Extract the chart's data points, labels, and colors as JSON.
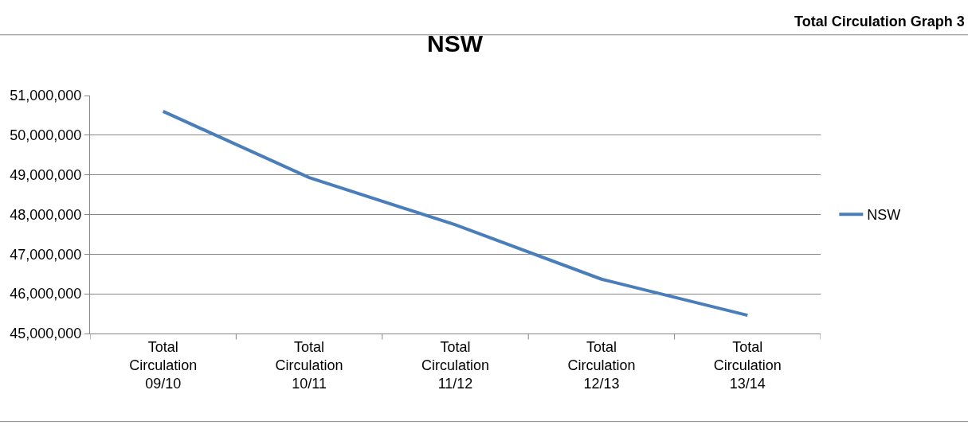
{
  "chart_data": {
    "type": "line",
    "title": "NSW",
    "annotations": [
      "Total Circulation Graph 3"
    ],
    "categories": [
      "Total Circulation 09/10",
      "Total Circulation 10/11",
      "Total Circulation 11/12",
      "Total Circulation 12/13",
      "Total Circulation 13/14"
    ],
    "series": [
      {
        "name": "NSW",
        "color": "#4a7ebb",
        "values": [
          50600000,
          48930000,
          47740000,
          46370000,
          45460000
        ]
      }
    ],
    "ylim": [
      45000000,
      51000000
    ],
    "yticks": [
      {
        "value": 45000000,
        "label": "45,000,000"
      },
      {
        "value": 46000000,
        "label": "46,000,000"
      },
      {
        "value": 47000000,
        "label": "47,000,000"
      },
      {
        "value": 48000000,
        "label": "48,000,000"
      },
      {
        "value": 49000000,
        "label": "49,000,000"
      },
      {
        "value": 50000000,
        "label": "50,000,000"
      },
      {
        "value": 51000000,
        "label": "51,000,000"
      }
    ],
    "grid": "y",
    "legend": "right",
    "marker": "none",
    "line_style": "solid"
  }
}
